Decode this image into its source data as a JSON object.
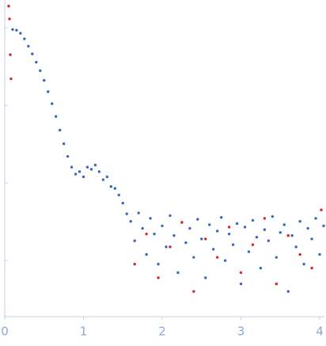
{
  "chart_data": {
    "type": "scatter",
    "log_y": true,
    "xlim": [
      0,
      4.05
    ],
    "xticks": [
      0,
      1,
      2,
      3,
      4
    ],
    "ylim": [
      0.000189,
      2.28
    ],
    "yticks": [
      0.001,
      0.01,
      0.1,
      1
    ],
    "series": [
      {
        "color": "#3a67c0",
        "x": [
          0.1,
          0.15,
          0.2,
          0.25,
          0.3,
          0.35,
          0.4,
          0.45,
          0.5,
          0.55,
          0.6,
          0.65,
          0.7,
          0.75,
          0.8,
          0.85,
          0.9,
          0.95,
          1.0,
          1.05,
          1.1,
          1.15,
          1.2,
          1.25,
          1.3,
          1.35,
          1.4,
          1.45,
          1.5,
          1.55,
          1.6,
          1.65,
          1.7,
          1.75,
          1.8,
          1.85,
          1.9,
          1.95,
          2.0,
          2.05,
          2.1,
          2.15,
          2.2,
          2.25,
          2.3,
          2.35,
          2.4,
          2.45,
          2.5,
          2.55,
          2.6,
          2.65,
          2.7,
          2.75,
          2.8,
          2.85,
          2.9,
          2.95,
          3.0,
          3.05,
          3.1,
          3.15,
          3.2,
          3.25,
          3.3,
          3.35,
          3.4,
          3.45,
          3.5,
          3.55,
          3.6,
          3.65,
          3.7,
          3.75,
          3.8,
          3.85,
          3.9,
          3.95,
          4.0,
          4.05
        ],
        "values": [
          0.95,
          0.93,
          0.85,
          0.72,
          0.58,
          0.46,
          0.36,
          0.28,
          0.21,
          0.15,
          0.105,
          0.072,
          0.048,
          0.032,
          0.022,
          0.016,
          0.013,
          0.014,
          0.012,
          0.016,
          0.015,
          0.017,
          0.014,
          0.011,
          0.012,
          0.009,
          0.0085,
          0.007,
          0.0055,
          0.004,
          0.0032,
          0.0018,
          0.0041,
          0.0026,
          0.0012,
          0.0035,
          0.0022,
          0.0009,
          0.0028,
          0.0015,
          0.0038,
          0.0021,
          0.0007,
          0.0031,
          0.0017,
          0.0026,
          0.0011,
          0.0034,
          0.0019,
          0.0006,
          0.0029,
          0.0014,
          0.0024,
          0.0036,
          0.001,
          0.0022,
          0.0016,
          0.003,
          0.0005,
          0.0027,
          0.0013,
          0.0033,
          0.002,
          0.0008,
          0.0025,
          0.0018,
          0.0037,
          0.0011,
          0.0023,
          0.0029,
          0.0004,
          0.0021,
          0.0015,
          0.0032,
          0.0009,
          0.0026,
          0.0019,
          0.0035,
          0.0012,
          0.0028
        ]
      },
      {
        "color": "#d62728",
        "x": [
          0.05,
          0.06,
          0.07,
          0.08,
          1.65,
          1.8,
          1.95,
          2.1,
          2.25,
          2.4,
          2.55,
          2.7,
          2.85,
          3.0,
          3.15,
          3.3,
          3.45,
          3.6,
          3.75,
          3.9,
          4.02
        ],
        "values": [
          1.9,
          1.3,
          0.45,
          0.22,
          0.0009,
          0.0022,
          0.0006,
          0.0015,
          0.0031,
          0.0004,
          0.0019,
          0.0011,
          0.0027,
          0.0007,
          0.0016,
          0.0035,
          0.0005,
          0.0021,
          0.0012,
          0.0008,
          0.0045
        ]
      }
    ]
  }
}
